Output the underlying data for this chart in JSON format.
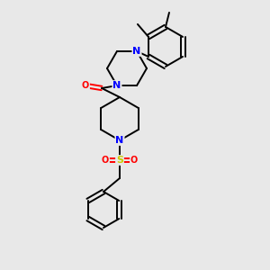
{
  "background_color": "#e8e8e8",
  "atom_colors": {
    "C": "#000000",
    "N": "#0000ff",
    "O": "#ff0000",
    "S": "#cccc00"
  },
  "figsize": [
    3.0,
    3.0
  ],
  "dpi": 100,
  "lw": 1.4,
  "sep": 2.2
}
